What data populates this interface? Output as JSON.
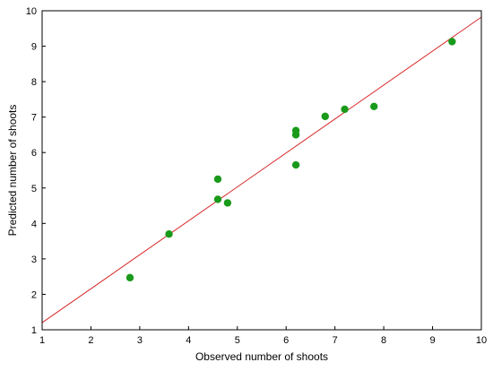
{
  "chart_data": {
    "type": "scatter",
    "title": "",
    "xlabel": "Observed number of shoots",
    "ylabel": "Predicted number of shoots",
    "xlim": [
      1,
      10
    ],
    "ylim": [
      1,
      10
    ],
    "xticks": [
      "1",
      "2",
      "3",
      "4",
      "5",
      "6",
      "7",
      "8",
      "9",
      "10"
    ],
    "yticks": [
      "1",
      "2",
      "3",
      "4",
      "5",
      "6",
      "7",
      "8",
      "9",
      "10"
    ],
    "grid": false,
    "legend": "none",
    "marker_color": "#1a9a1a",
    "line_color": "#d62728",
    "series": [
      {
        "points": [
          {
            "x": 2.8,
            "y": 2.47
          },
          {
            "x": 3.6,
            "y": 3.7
          },
          {
            "x": 4.6,
            "y": 5.25
          },
          {
            "x": 4.6,
            "y": 4.68
          },
          {
            "x": 4.8,
            "y": 4.58
          },
          {
            "x": 6.2,
            "y": 6.62
          },
          {
            "x": 6.2,
            "y": 6.5
          },
          {
            "x": 6.2,
            "y": 5.65
          },
          {
            "x": 6.8,
            "y": 7.02
          },
          {
            "x": 7.2,
            "y": 7.22
          },
          {
            "x": 7.8,
            "y": 7.3
          },
          {
            "x": 9.4,
            "y": 9.13
          }
        ]
      }
    ],
    "fit_line": {
      "x": [
        1,
        10
      ],
      "y": [
        1.2,
        9.82
      ]
    }
  }
}
